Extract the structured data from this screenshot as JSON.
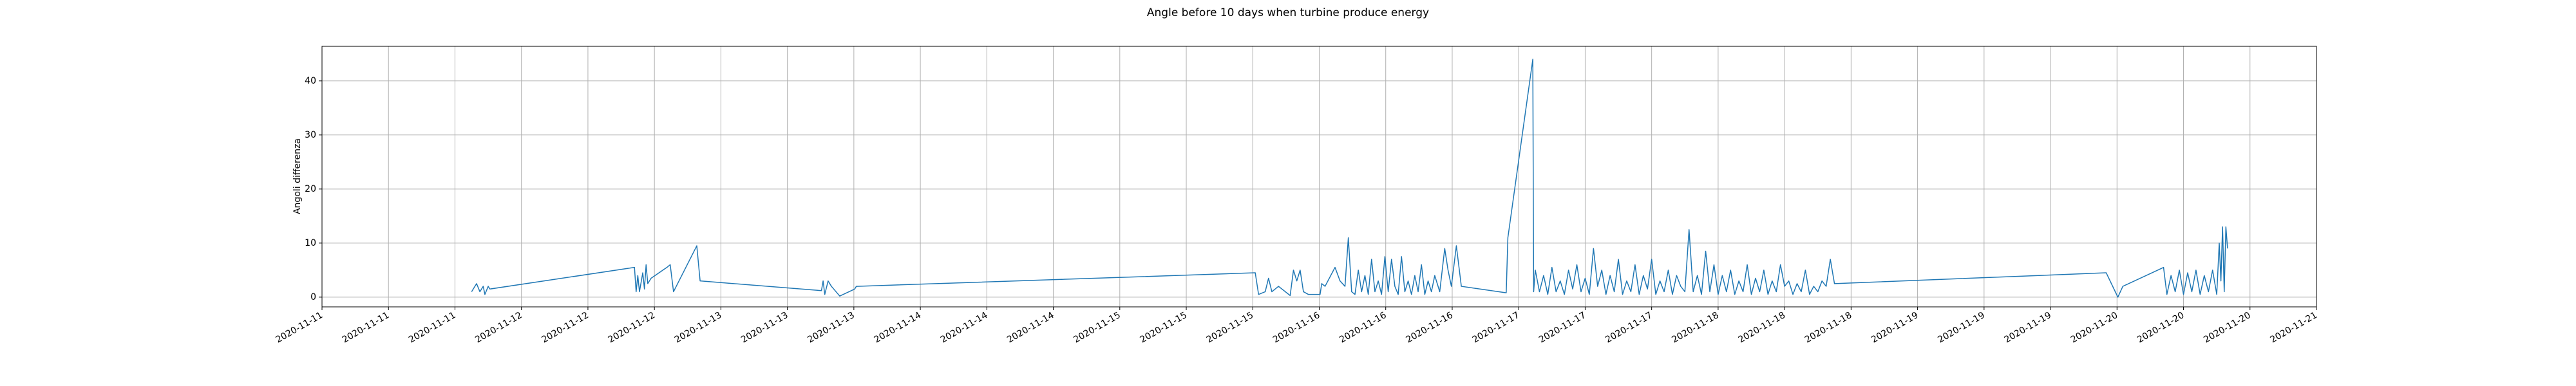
{
  "chart_data": {
    "type": "line",
    "title": "Angle before 10 days when turbine produce energy",
    "y_label": "Angoli differenza",
    "x": [
      18.0,
      18.6,
      19.0,
      19.4,
      19.6,
      20.0,
      20.2,
      37.6,
      37.8,
      38.0,
      38.2,
      38.6,
      38.8,
      39.0,
      39.2,
      39.6,
      41.5,
      41.9,
      42.3,
      45.1,
      45.5,
      60.1,
      60.3,
      60.5,
      60.9,
      61.3,
      62.3,
      64.1,
      64.3,
      112.3,
      112.7,
      113.5,
      113.9,
      114.3,
      115.1,
      116.5,
      116.9,
      117.3,
      117.7,
      118.1,
      118.7,
      120.1,
      120.3,
      120.7,
      121.9,
      122.5,
      123.1,
      123.5,
      123.9,
      124.3,
      124.7,
      125.1,
      125.5,
      125.9,
      126.3,
      126.7,
      127.1,
      127.5,
      127.9,
      128.3,
      128.7,
      129.1,
      129.5,
      129.9,
      130.3,
      130.7,
      131.1,
      131.5,
      131.9,
      132.3,
      132.7,
      133.1,
      133.5,
      133.9,
      134.5,
      135.1,
      135.5,
      135.9,
      136.5,
      137.1,
      142.5,
      142.7,
      145.7,
      145.8,
      146.0,
      146.5,
      147.0,
      147.5,
      148.0,
      148.5,
      149.0,
      149.5,
      150.0,
      150.5,
      151.0,
      151.5,
      152.0,
      152.5,
      153.0,
      153.5,
      154.0,
      154.5,
      155.0,
      155.5,
      156.0,
      156.5,
      157.0,
      157.5,
      158.0,
      158.5,
      159.0,
      159.5,
      160.0,
      160.5,
      161.0,
      161.5,
      162.0,
      162.5,
      163.0,
      163.5,
      164.0,
      164.5,
      165.0,
      165.5,
      166.0,
      166.5,
      167.0,
      167.5,
      168.0,
      168.5,
      169.0,
      169.5,
      170.0,
      170.5,
      171.0,
      171.5,
      172.0,
      172.5,
      173.0,
      173.5,
      174.0,
      174.5,
      175.0,
      175.5,
      176.0,
      176.5,
      177.0,
      177.5,
      178.0,
      178.5,
      179.0,
      179.5,
      180.0,
      180.5,
      181.0,
      181.5,
      182.0,
      214.7,
      216.1,
      216.7,
      221.6,
      222.0,
      222.5,
      223.0,
      223.5,
      224.0,
      224.5,
      225.0,
      225.5,
      226.0,
      226.5,
      227.0,
      227.5,
      228.0,
      228.3,
      228.5,
      228.7,
      228.9,
      229.1,
      229.3
    ],
    "series": [
      {
        "color": "#1f77b4",
        "values": [
          1,
          2.5,
          1,
          2,
          0.5,
          2,
          1.5,
          5.5,
          1,
          4,
          1,
          4.5,
          1.5,
          6,
          2.5,
          3.5,
          5.5,
          6,
          1,
          9.5,
          3,
          1.2,
          3,
          0.5,
          3,
          2,
          0.2,
          1.5,
          2,
          4.5,
          0.5,
          1,
          3.5,
          1,
          2,
          0.3,
          5,
          3,
          5,
          1,
          0.5,
          0.5,
          2.5,
          2,
          5.5,
          3,
          2,
          11,
          1,
          0.5,
          5,
          1,
          4,
          0.5,
          7,
          1,
          3,
          0.5,
          7.5,
          1,
          7,
          2,
          0.5,
          7.5,
          1,
          3,
          0.5,
          4,
          1,
          6,
          0.5,
          3,
          1,
          4,
          1,
          9,
          5,
          2,
          9.5,
          2,
          0.8,
          11,
          44,
          1,
          5,
          1,
          4,
          0.5,
          5.5,
          1,
          3,
          0.5,
          5,
          1.5,
          6,
          1,
          3.5,
          0.5,
          9,
          2,
          5,
          0.5,
          4,
          1,
          7,
          0.5,
          3,
          1,
          6,
          0.5,
          4,
          1.5,
          7,
          0.5,
          3,
          1,
          5,
          0.5,
          4,
          2,
          1,
          12.5,
          1,
          4,
          0.5,
          8.5,
          1,
          6,
          0.5,
          4,
          1,
          5,
          0.5,
          3,
          1,
          6,
          0.5,
          3.5,
          1,
          5,
          0.5,
          3,
          1,
          6,
          2,
          3,
          0.5,
          2.5,
          1,
          5,
          0.5,
          2,
          1,
          3,
          2,
          7,
          2.5,
          4.5,
          0,
          2,
          5.5,
          0.5,
          4,
          1,
          5,
          0.5,
          4.5,
          1,
          5,
          0.5,
          4,
          1,
          5,
          0.5,
          10,
          3,
          13,
          1,
          13,
          9
        ]
      }
    ],
    "xlim": [
      0,
      240
    ],
    "xticks": [
      {
        "value": 0,
        "label": "2020-11-11"
      },
      {
        "value": 8,
        "label": "2020-11-11"
      },
      {
        "value": 16,
        "label": "2020-11-11"
      },
      {
        "value": 24,
        "label": "2020-11-12"
      },
      {
        "value": 32,
        "label": "2020-11-12"
      },
      {
        "value": 40,
        "label": "2020-11-12"
      },
      {
        "value": 48,
        "label": "2020-11-13"
      },
      {
        "value": 56,
        "label": "2020-11-13"
      },
      {
        "value": 64,
        "label": "2020-11-13"
      },
      {
        "value": 72,
        "label": "2020-11-14"
      },
      {
        "value": 80,
        "label": "2020-11-14"
      },
      {
        "value": 88,
        "label": "2020-11-14"
      },
      {
        "value": 96,
        "label": "2020-11-15"
      },
      {
        "value": 104,
        "label": "2020-11-15"
      },
      {
        "value": 112,
        "label": "2020-11-15"
      },
      {
        "value": 120,
        "label": "2020-11-16"
      },
      {
        "value": 128,
        "label": "2020-11-16"
      },
      {
        "value": 136,
        "label": "2020-11-16"
      },
      {
        "value": 144,
        "label": "2020-11-17"
      },
      {
        "value": 152,
        "label": "2020-11-17"
      },
      {
        "value": 160,
        "label": "2020-11-17"
      },
      {
        "value": 168,
        "label": "2020-11-18"
      },
      {
        "value": 176,
        "label": "2020-11-18"
      },
      {
        "value": 184,
        "label": "2020-11-18"
      },
      {
        "value": 192,
        "label": "2020-11-19"
      },
      {
        "value": 200,
        "label": "2020-11-19"
      },
      {
        "value": 208,
        "label": "2020-11-19"
      },
      {
        "value": 216,
        "label": "2020-11-20"
      },
      {
        "value": 224,
        "label": "2020-11-20"
      },
      {
        "value": 232,
        "label": "2020-11-20"
      },
      {
        "value": 240,
        "label": "2020-11-21"
      }
    ],
    "ylim": [
      -1.8,
      46.4
    ],
    "yticks": [
      0,
      10,
      20,
      30,
      40
    ],
    "grid": true
  }
}
